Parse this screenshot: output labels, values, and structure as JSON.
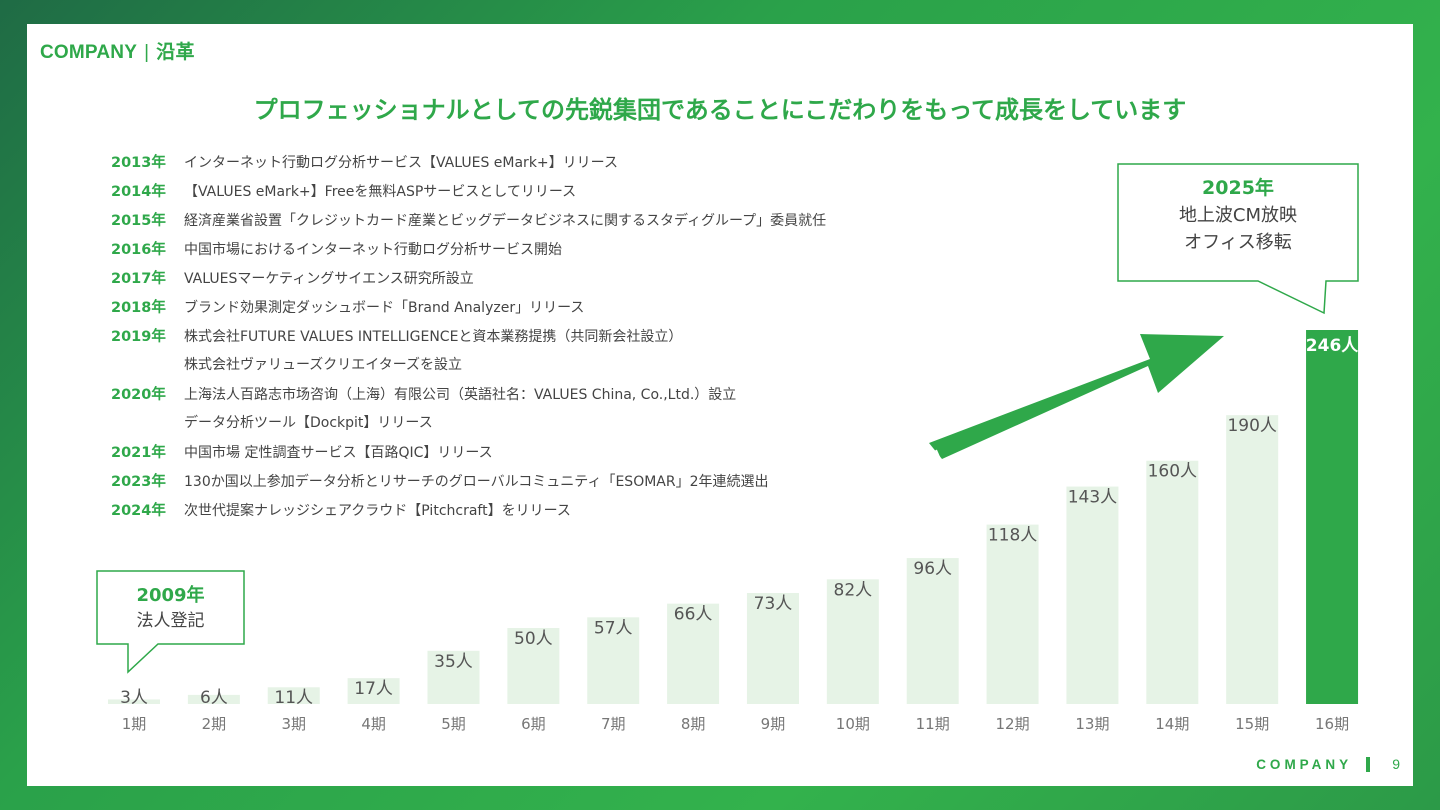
{
  "header": {
    "company": "COMPANY",
    "section": "沿革"
  },
  "title": "プロフェッショナルとしての先鋭集団であることにこだわりをもって成長をしています",
  "timeline": [
    {
      "year": "2013年",
      "text": "インターネット行動ログ分析サービス【VALUES eMark+】リリース"
    },
    {
      "year": "2014年",
      "text": "【VALUES eMark+】Freeを無料ASPサービスとしてリリース"
    },
    {
      "year": "2015年",
      "text": "経済産業省設置「クレジットカード産業とビッグデータビジネスに関するスタディグループ」委員就任"
    },
    {
      "year": "2016年",
      "text": "中国市場におけるインターネット行動ログ分析サービス開始"
    },
    {
      "year": "2017年",
      "text": "VALUESマーケティングサイエンス研究所設立"
    },
    {
      "year": "2018年",
      "text": "ブランド効果測定ダッシュボード「Brand Analyzer」リリース"
    },
    {
      "year": "2019年",
      "text": "株式会社FUTURE VALUES INTELLIGENCEと資本業務提携（共同新会社設立）"
    },
    {
      "year": "",
      "text": "株式会社ヴァリューズクリエイターズを設立"
    },
    {
      "year": "2020年",
      "text": "上海法人百路志市场咨询（上海）有限公司（英語社名：VALUES China, Co.,Ltd.）設立"
    },
    {
      "year": "",
      "text": "データ分析ツール【Dockpit】リリース"
    },
    {
      "year": "2021年",
      "text": "中国市場 定性調査サービス【百路QIC】リリース"
    },
    {
      "year": "2023年",
      "text": "130か国以上参加データ分析とリサーチのグローバルコミュニティ「ESOMAR」2年連続選出"
    },
    {
      "year": "2024年",
      "text": "次世代提案ナレッジシェアクラウド【Pitchcraft】をリリース"
    }
  ],
  "callout_2009": {
    "year": "2009年",
    "text": "法人登記"
  },
  "callout_2025": {
    "year": "2025年",
    "line1": "地上波CM放映",
    "line2": "オフィス移転"
  },
  "chart_data": {
    "type": "bar",
    "categories": [
      "1期",
      "2期",
      "3期",
      "4期",
      "5期",
      "6期",
      "7期",
      "8期",
      "9期",
      "10期",
      "11期",
      "12期",
      "13期",
      "14期",
      "15期",
      "16期"
    ],
    "values": [
      3,
      6,
      11,
      17,
      35,
      50,
      57,
      66,
      73,
      82,
      96,
      118,
      143,
      160,
      190,
      246
    ],
    "labels": [
      "3人",
      "6人",
      "11人",
      "17人",
      "35人",
      "50人",
      "57人",
      "66人",
      "73人",
      "82人",
      "96人",
      "118人",
      "143人",
      "160人",
      "190人",
      "246人"
    ],
    "highlight_index": 15,
    "colors": {
      "bar": "#e6f3e6",
      "highlight": "#2fa84a",
      "label": "#555555",
      "highlight_label": "#ffffff",
      "axis_label": "#777777"
    }
  },
  "footer": {
    "company": "COMPANY",
    "page": "9"
  }
}
